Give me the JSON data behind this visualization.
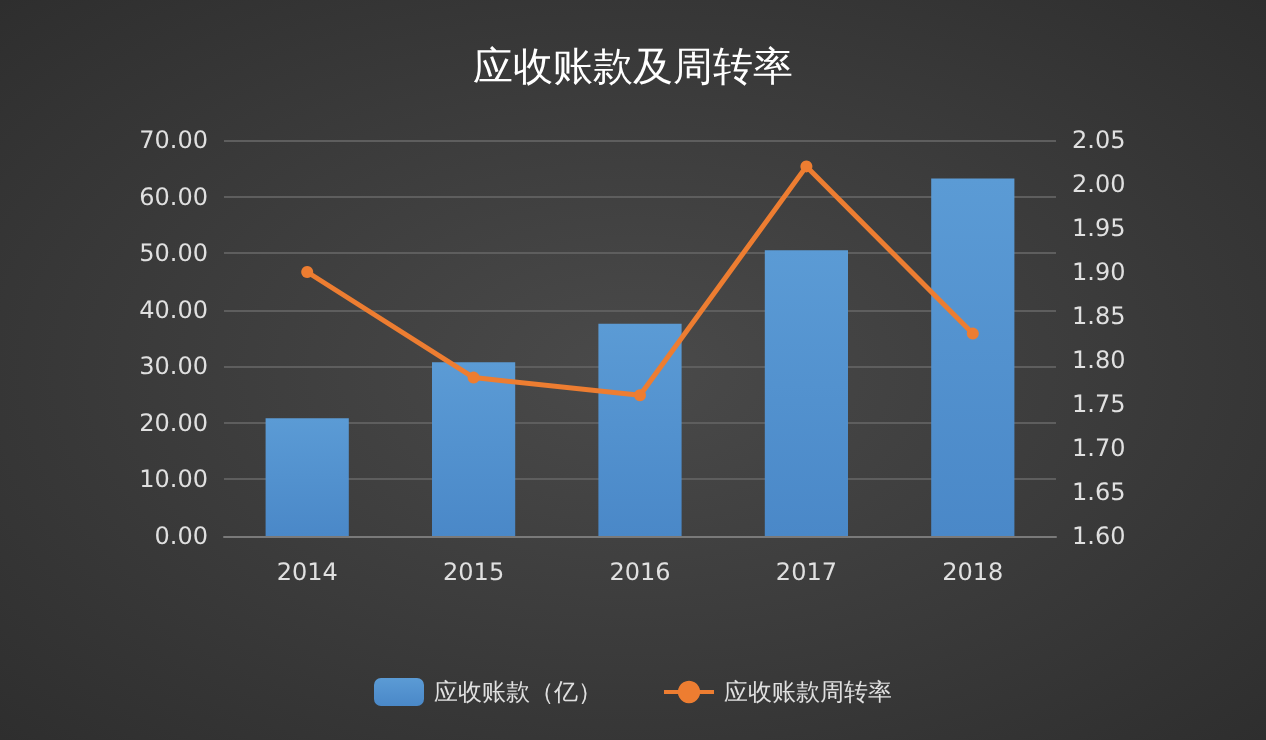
{
  "chart_data": {
    "type": "bar",
    "title": "应收账款及周转率",
    "categories": [
      "2014",
      "2015",
      "2016",
      "2017",
      "2018"
    ],
    "series": [
      {
        "name": "应收账款（亿）",
        "color": "#5b9bd5",
        "values": [
          20.8,
          30.7,
          37.5,
          50.5,
          63.2
        ]
      },
      {
        "name": "应收账款周转率",
        "type": "line",
        "axis": "y2",
        "color": "#ed7d31",
        "values": [
          1.9,
          1.78,
          1.76,
          2.02,
          1.83
        ]
      }
    ],
    "ylim": [
      0,
      70
    ],
    "yticks": [
      {
        "value": 0,
        "label": "0.00"
      },
      {
        "value": 10,
        "label": "10.00"
      },
      {
        "value": 20,
        "label": "20.00"
      },
      {
        "value": 30,
        "label": "30.00"
      },
      {
        "value": 40,
        "label": "40.00"
      },
      {
        "value": 50,
        "label": "50.00"
      },
      {
        "value": 60,
        "label": "60.00"
      },
      {
        "value": 70,
        "label": "70.00"
      }
    ],
    "y2lim": [
      1.6,
      2.05
    ],
    "y2ticks": [
      {
        "value": 1.6,
        "label": "1.60"
      },
      {
        "value": 1.65,
        "label": "1.65"
      },
      {
        "value": 1.7,
        "label": "1.70"
      },
      {
        "value": 1.75,
        "label": "1.75"
      },
      {
        "value": 1.8,
        "label": "1.80"
      },
      {
        "value": 1.85,
        "label": "1.85"
      },
      {
        "value": 1.9,
        "label": "1.90"
      },
      {
        "value": 1.95,
        "label": "1.95"
      },
      {
        "value": 2.0,
        "label": "2.00"
      },
      {
        "value": 2.05,
        "label": "2.05"
      }
    ],
    "grid": "y",
    "legend": "bottom",
    "marker": "circle"
  }
}
